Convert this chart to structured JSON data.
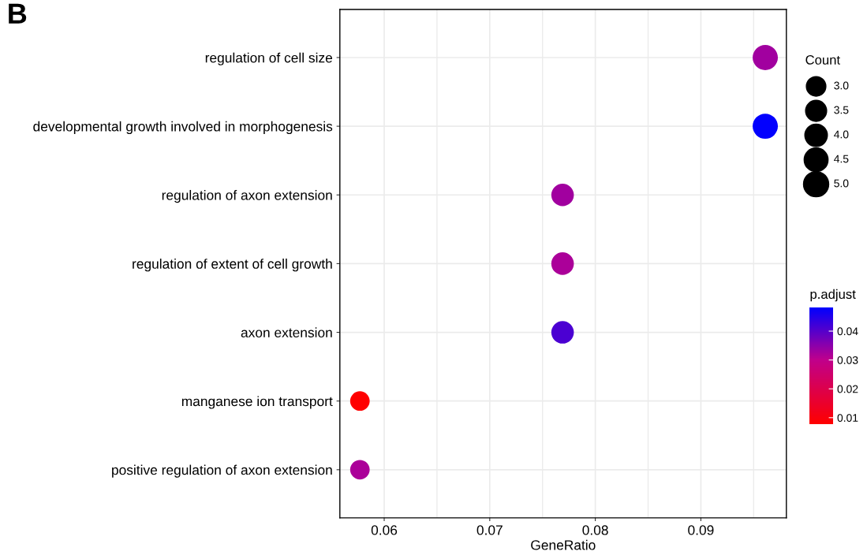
{
  "chart_data": {
    "type": "bubble",
    "orientation": "horizontal",
    "categories": [
      "regulation of cell size",
      "developmental growth involved in morphogenesis",
      "regulation of axon extension",
      "regulation of extent of cell growth",
      "axon extension",
      "manganese ion transport",
      "positive regulation of axon extension"
    ],
    "values": [
      0.0961,
      0.0961,
      0.0769,
      0.0769,
      0.0769,
      0.0577,
      0.0577
    ],
    "sizes": [
      5,
      5,
      4,
      4,
      4,
      3,
      3
    ],
    "cvalues": [
      0.033,
      0.048,
      0.033,
      0.032,
      0.041,
      0.0078,
      0.032
    ],
    "size_legend": [
      {
        "value": 3,
        "label": "3.0"
      },
      {
        "value": 3.5,
        "label": "3.5"
      },
      {
        "value": 4,
        "label": "4.0"
      },
      {
        "value": 4.5,
        "label": "4.5"
      },
      {
        "value": 5,
        "label": "5.0"
      }
    ],
    "legend_title": "Count",
    "clabel": "p.adjust",
    "clim": [
      0.0078,
      0.0482
    ],
    "cticks": [
      0.01,
      0.02,
      0.03,
      0.04
    ],
    "xlim": [
      0.0558,
      0.0981
    ],
    "xticks": [
      0.06,
      0.07,
      0.08,
      0.09
    ],
    "xlabel": "GeneRatio",
    "grid": true,
    "annotations": [
      "B"
    ]
  }
}
